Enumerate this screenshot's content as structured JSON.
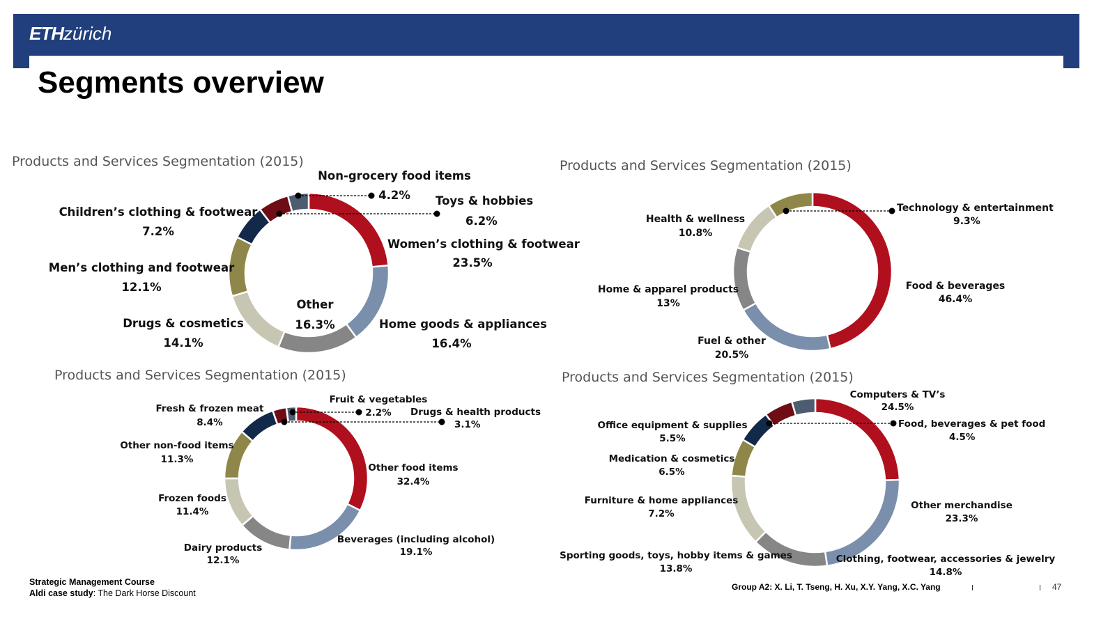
{
  "header": {
    "logo_bold": "ETH",
    "logo_light": "zürich",
    "brand_color": "#203f7c"
  },
  "page_title": "Segments overview",
  "footer": {
    "course": "Strategic Management Course",
    "case_prefix": "Aldi case study",
    "case_suffix": ": The Dark Horse Discount",
    "group": "Group A2: X. Li, T. Tseng, H. Xu, X.Y. Yang, X.C. Yang",
    "page_number": "47"
  },
  "chart_data": [
    {
      "type": "pie",
      "title": "Products and Services Segmentation (2015)",
      "slices": [
        {
          "label": "Women’s clothing & footwear",
          "value": 23.5,
          "pct": "23.5%",
          "color": "#b0101e"
        },
        {
          "label": "Home goods & appliances",
          "value": 16.4,
          "pct": "16.4%",
          "color": "#7a8fab"
        },
        {
          "label": "Other",
          "value": 16.3,
          "pct": "16.3%",
          "color": "#868686"
        },
        {
          "label": "Drugs & cosmetics",
          "value": 14.1,
          "pct": "14.1%",
          "color": "#c7c6b3"
        },
        {
          "label": "Men’s clothing and footwear",
          "value": 12.1,
          "pct": "12.1%",
          "color": "#8f8749"
        },
        {
          "label": "Children’s clothing & footwear",
          "value": 7.2,
          "pct": "7.2%",
          "color": "#13294a"
        },
        {
          "label": "Toys & hobbies",
          "value": 6.2,
          "pct": "6.2%",
          "color": "#6e0d16"
        },
        {
          "label": "Non-grocery food items",
          "value": 4.2,
          "pct": "4.2%",
          "color": "#4d5c70"
        }
      ]
    },
    {
      "type": "pie",
      "title": "Products and Services Segmentation (2015)",
      "slices": [
        {
          "label": "Food & beverages",
          "value": 46.4,
          "pct": "46.4%",
          "color": "#b0101e"
        },
        {
          "label": "Fuel & other",
          "value": 20.5,
          "pct": "20.5%",
          "color": "#7a8fab"
        },
        {
          "label": "Home & apparel products",
          "value": 13,
          "pct": "13%",
          "color": "#868686"
        },
        {
          "label": "Health & wellness",
          "value": 10.8,
          "pct": "10.8%",
          "color": "#c7c6b3"
        },
        {
          "label": "Technology & entertainment",
          "value": 9.3,
          "pct": "9.3%",
          "color": "#8f8749"
        }
      ]
    },
    {
      "type": "pie",
      "title": "Products and Services Segmentation (2015)",
      "slices": [
        {
          "label": "Other food items",
          "value": 32.4,
          "pct": "32.4%",
          "color": "#b0101e"
        },
        {
          "label": "Beverages (including alcohol)",
          "value": 19.1,
          "pct": "19.1%",
          "color": "#7a8fab"
        },
        {
          "label": "Dairy products",
          "value": 12.1,
          "pct": "12.1%",
          "color": "#868686"
        },
        {
          "label": "Frozen foods",
          "value": 11.4,
          "pct": "11.4%",
          "color": "#c7c6b3"
        },
        {
          "label": "Other non-food items",
          "value": 11.3,
          "pct": "11.3%",
          "color": "#8f8749"
        },
        {
          "label": "Fresh & frozen meat",
          "value": 8.4,
          "pct": "8.4%",
          "color": "#13294a"
        },
        {
          "label": "Drugs & health products",
          "value": 3.1,
          "pct": "3.1%",
          "color": "#6e0d16"
        },
        {
          "label": "Fruit & vegetables",
          "value": 2.2,
          "pct": "2.2%",
          "color": "#4d5c70"
        }
      ]
    },
    {
      "type": "pie",
      "title": "Products and Services Segmentation (2015)",
      "slices": [
        {
          "label": "Computers & TV’s",
          "value": 24.5,
          "pct": "24.5%",
          "color": "#b0101e"
        },
        {
          "label": "Other merchandise",
          "value": 23.3,
          "pct": "23.3%",
          "color": "#7a8fab"
        },
        {
          "label": "Clothing, footwear, accessories & jewelry",
          "value": 14.8,
          "pct": "14.8%",
          "color": "#868686"
        },
        {
          "label": "Sporting goods, toys, hobby items & games",
          "value": 13.8,
          "pct": "13.8%",
          "color": "#c7c6b3"
        },
        {
          "label": "Furniture & home appliances",
          "value": 7.2,
          "pct": "7.2%",
          "color": "#8f8749"
        },
        {
          "label": "Medication & cosmetics",
          "value": 6.5,
          "pct": "6.5%",
          "color": "#13294a"
        },
        {
          "label": "Office equipment & supplies",
          "value": 5.5,
          "pct": "5.5%",
          "color": "#6e0d16"
        },
        {
          "label": "Food, beverages & pet food",
          "value": 4.5,
          "pct": "4.5%",
          "color": "#4d5c70"
        }
      ]
    }
  ]
}
